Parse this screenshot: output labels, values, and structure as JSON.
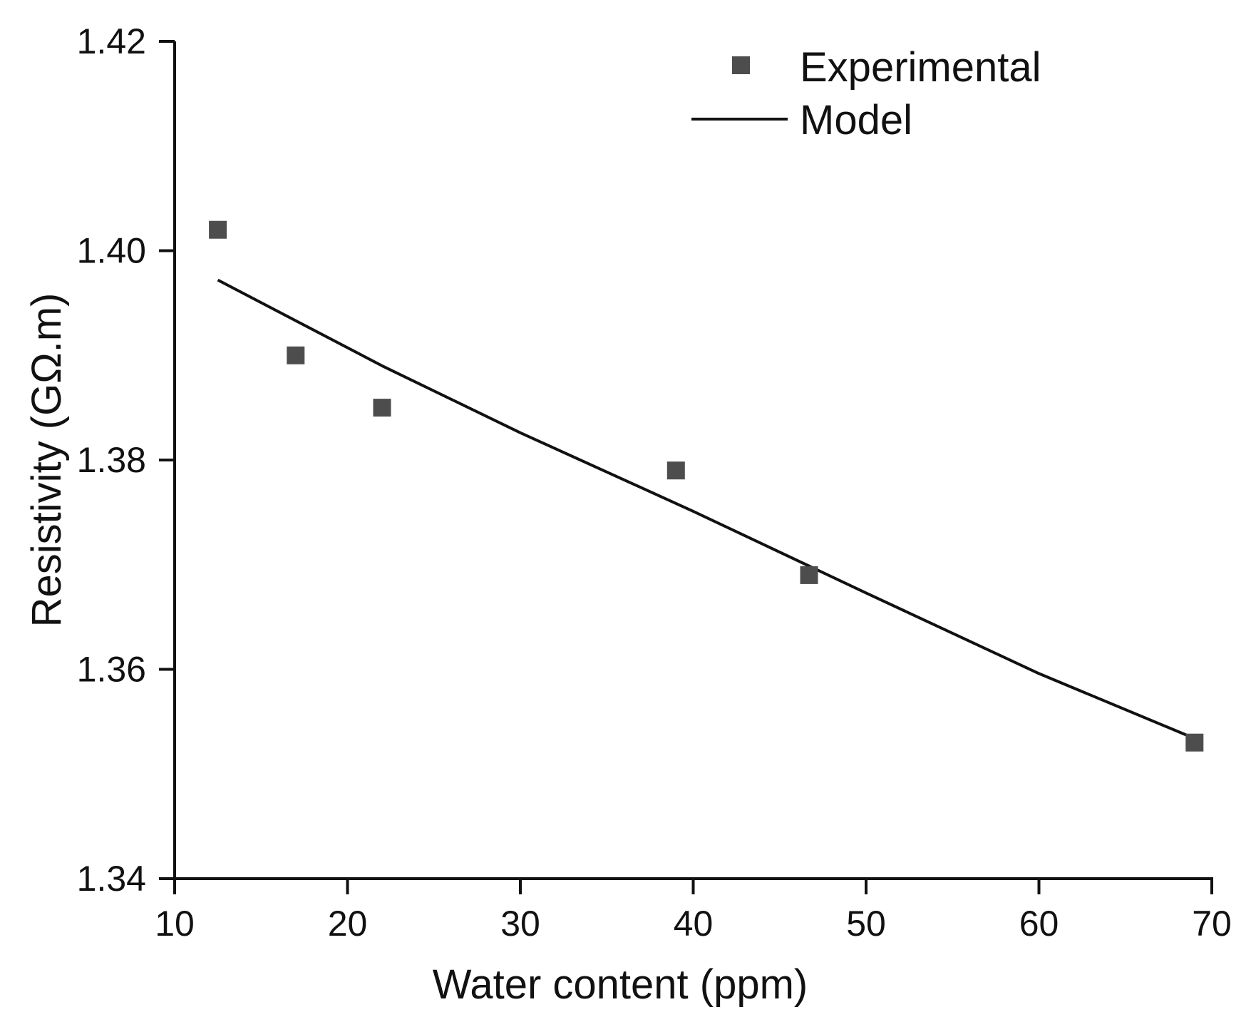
{
  "chart_data": {
    "type": "scatter",
    "title": "",
    "xlabel": "Water content (ppm)",
    "ylabel": "Resistivity (GΩ.m)",
    "xlim": [
      10,
      70
    ],
    "ylim": [
      1.34,
      1.42
    ],
    "xticks": [
      10,
      20,
      30,
      40,
      50,
      60,
      70
    ],
    "yticks": [
      1.34,
      1.36,
      1.38,
      1.4,
      1.42
    ],
    "xtick_labels": [
      "10",
      "20",
      "30",
      "40",
      "50",
      "60",
      "70"
    ],
    "ytick_labels": [
      "1.34",
      "1.36",
      "1.38",
      "1.40",
      "1.42"
    ],
    "grid": false,
    "legend_position": "top-right",
    "series": [
      {
        "name": "Experimental",
        "kind": "scatter",
        "marker": "square",
        "color": "#4d4d4d",
        "x": [
          12.5,
          17,
          22,
          39,
          46.7,
          69
        ],
        "y": [
          1.402,
          1.39,
          1.385,
          1.379,
          1.369,
          1.353
        ]
      },
      {
        "name": "Model",
        "kind": "line",
        "color": "#111111",
        "x": [
          12.5,
          22,
          30,
          40,
          50,
          60,
          69
        ],
        "y": [
          1.3972,
          1.389,
          1.3826,
          1.3751,
          1.3673,
          1.3596,
          1.3534
        ]
      }
    ]
  }
}
